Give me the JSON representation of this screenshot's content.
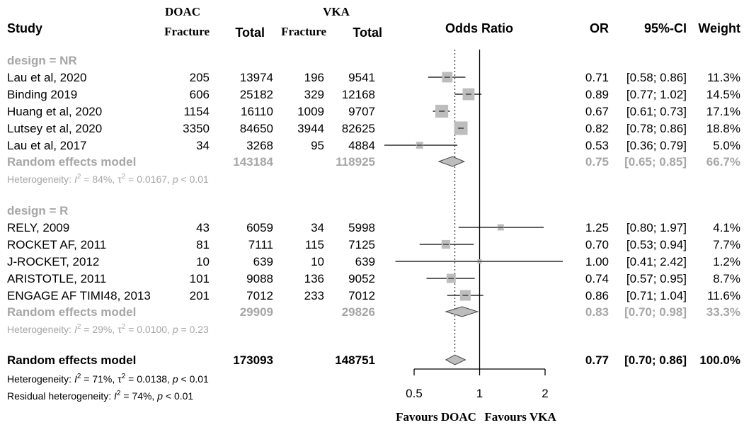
{
  "header": {
    "group_a": "DOAC",
    "group_b": "VKA",
    "study": "Study",
    "fracture_a": "Fracture",
    "total_a": "Total",
    "fracture_b": "Fracture",
    "total_b": "Total",
    "odds_ratio": "Odds Ratio",
    "or": "OR",
    "ci": "95%-CI",
    "weight": "Weight"
  },
  "chart_data": {
    "type": "forest",
    "x_scale": "log",
    "xlim": [
      0.5,
      2
    ],
    "ticks": [
      0.5,
      1,
      2
    ],
    "tick_labels": [
      "0.5",
      "1",
      "2"
    ],
    "reference_line": 1,
    "overall_line": 0.77,
    "favours_left": "Favours DOAC",
    "favours_right": "Favours VKA",
    "groups": [
      {
        "label": "design = NR",
        "studies": [
          {
            "study": "Lau et al, 2020",
            "ev_a": "205",
            "tot_a": "13974",
            "ev_b": "196",
            "tot_b": "9541",
            "or": 0.71,
            "lo": 0.58,
            "hi": 0.86,
            "or_text": "0.71",
            "ci_text": "[0.58; 0.86]",
            "weight_text": "11.3%",
            "weight": 11.3
          },
          {
            "study": "Binding 2019",
            "ev_a": "606",
            "tot_a": "25182",
            "ev_b": "329",
            "tot_b": "12168",
            "or": 0.89,
            "lo": 0.77,
            "hi": 1.02,
            "or_text": "0.89",
            "ci_text": "[0.77; 1.02]",
            "weight_text": "14.5%",
            "weight": 14.5
          },
          {
            "study": "Huang et al, 2020",
            "ev_a": "1154",
            "tot_a": "16110",
            "ev_b": "1009",
            "tot_b": "9707",
            "or": 0.67,
            "lo": 0.61,
            "hi": 0.73,
            "or_text": "0.67",
            "ci_text": "[0.61; 0.73]",
            "weight_text": "17.1%",
            "weight": 17.1
          },
          {
            "study": "Lutsey et al, 2020",
            "ev_a": "3350",
            "tot_a": "84650",
            "ev_b": "3944",
            "tot_b": "82625",
            "or": 0.82,
            "lo": 0.78,
            "hi": 0.86,
            "or_text": "0.82",
            "ci_text": "[0.78; 0.86]",
            "weight_text": "18.8%",
            "weight": 18.8
          },
          {
            "study": "Lau et al, 2017",
            "ev_a": "34",
            "tot_a": "3268",
            "ev_b": "95",
            "tot_b": "4884",
            "or": 0.53,
            "lo": 0.36,
            "hi": 0.79,
            "or_text": "0.53",
            "ci_text": "[0.36; 0.79]",
            "weight_text": "5.0%",
            "weight": 5.0
          }
        ],
        "model": {
          "label": "Random effects model",
          "tot_a": "143184",
          "tot_b": "118925",
          "or": 0.75,
          "lo": 0.65,
          "hi": 0.85,
          "or_text": "0.75",
          "ci_text": "[0.65; 0.85]",
          "weight_text": "66.7%"
        },
        "heterogeneity": {
          "prefix": "Heterogeneity: ",
          "i2_symbol": "I",
          "i2_exp": "2",
          "i2_value": " = 84%, ",
          "tau_symbol": "τ",
          "tau_exp": "2",
          "tau_value": " = 0.0167, ",
          "p_symbol": "p",
          "p_value": " < 0.01"
        }
      },
      {
        "label": "design = R",
        "studies": [
          {
            "study": "RELY, 2009",
            "ev_a": "43",
            "tot_a": "6059",
            "ev_b": "34",
            "tot_b": "5998",
            "or": 1.25,
            "lo": 0.8,
            "hi": 1.97,
            "or_text": "1.25",
            "ci_text": "[0.80; 1.97]",
            "weight_text": "4.1%",
            "weight": 4.1
          },
          {
            "study": "ROCKET AF, 2011",
            "ev_a": "81",
            "tot_a": "7111",
            "ev_b": "115",
            "tot_b": "7125",
            "or": 0.7,
            "lo": 0.53,
            "hi": 0.94,
            "or_text": "0.70",
            "ci_text": "[0.53; 0.94]",
            "weight_text": "7.7%",
            "weight": 7.7
          },
          {
            "study": "J-ROCKET, 2012",
            "ev_a": "10",
            "tot_a": "639",
            "ev_b": "10",
            "tot_b": "639",
            "or": 1.0,
            "lo": 0.41,
            "hi": 2.42,
            "or_text": "1.00",
            "ci_text": "[0.41; 2.42]",
            "weight_text": "1.2%",
            "weight": 1.2
          },
          {
            "study": "ARISTOTLE, 2011",
            "ev_a": "101",
            "tot_a": "9088",
            "ev_b": "136",
            "tot_b": "9052",
            "or": 0.74,
            "lo": 0.57,
            "hi": 0.95,
            "or_text": "0.74",
            "ci_text": "[0.57; 0.95]",
            "weight_text": "8.7%",
            "weight": 8.7
          },
          {
            "study": "ENGAGE AF TIMI48, 2013",
            "ev_a": "201",
            "tot_a": "7012",
            "ev_b": "233",
            "tot_b": "7012",
            "or": 0.86,
            "lo": 0.71,
            "hi": 1.04,
            "or_text": "0.86",
            "ci_text": "[0.71; 1.04]",
            "weight_text": "11.6%",
            "weight": 11.6
          }
        ],
        "model": {
          "label": "Random effects model",
          "tot_a": "29909",
          "tot_b": "29826",
          "or": 0.83,
          "lo": 0.7,
          "hi": 0.98,
          "or_text": "0.83",
          "ci_text": "[0.70; 0.98]",
          "weight_text": "33.3%"
        },
        "heterogeneity": {
          "prefix": "Heterogeneity: ",
          "i2_symbol": "I",
          "i2_exp": "2",
          "i2_value": " = 29%, ",
          "tau_symbol": "τ",
          "tau_exp": "2",
          "tau_value": " = 0.0100, ",
          "p_symbol": "p",
          "p_value": " = 0.23"
        }
      }
    ],
    "overall": {
      "label": "Random effects model",
      "tot_a": "173093",
      "tot_b": "148751",
      "or": 0.77,
      "lo": 0.7,
      "hi": 0.86,
      "or_text": "0.77",
      "ci_text": "[0.70; 0.86]",
      "weight_text": "100.0%",
      "heterogeneity": {
        "prefix": "Heterogeneity: ",
        "i2_symbol": "I",
        "i2_exp": "2",
        "i2_value": " = 71%, ",
        "tau_symbol": "τ",
        "tau_exp": "2",
        "tau_value": " = 0.0138, ",
        "p_symbol": "p",
        "p_value": " < 0.01"
      },
      "residual": {
        "prefix": "Residual heterogeneity: ",
        "i2_symbol": "I",
        "i2_exp": "2",
        "i2_value": " = 74%, ",
        "p_symbol": "p",
        "p_value": " < 0.01"
      }
    },
    "colors": {
      "text": "#000000",
      "subgroup": "#a6a6a6",
      "square": "#bdbdbd",
      "diamond": "#bdbdbd"
    }
  }
}
